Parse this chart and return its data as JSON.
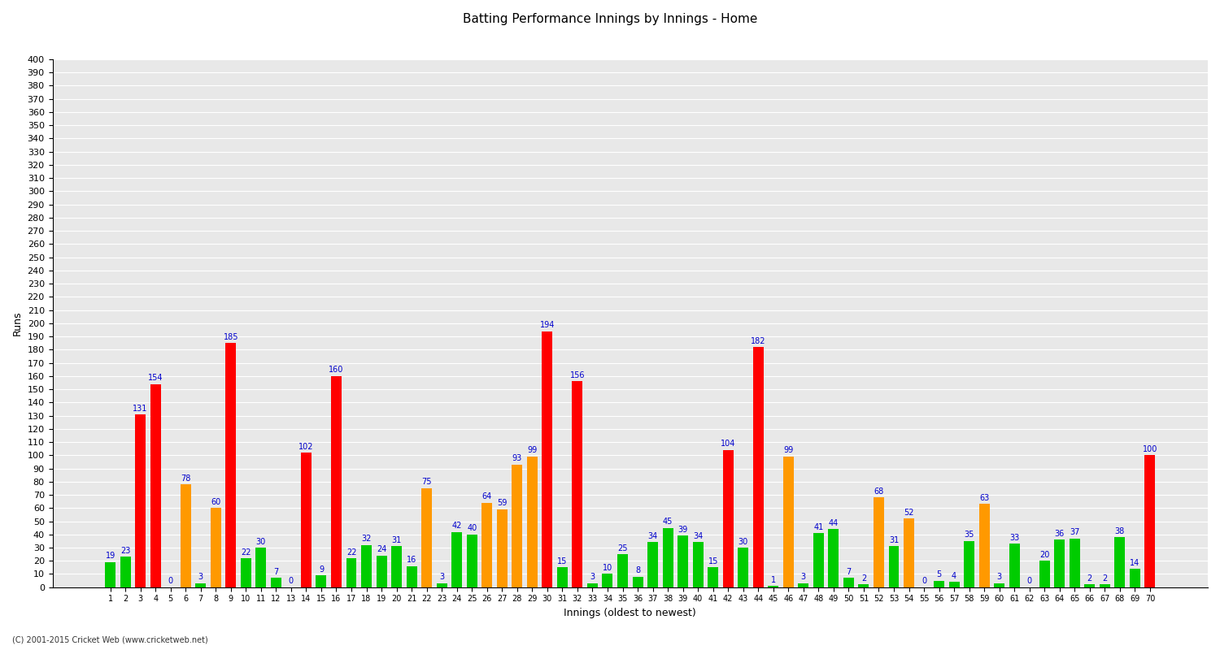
{
  "innings": [
    1,
    2,
    3,
    4,
    5,
    6,
    7,
    8,
    9,
    10,
    11,
    12,
    13,
    14,
    15,
    16,
    17,
    18,
    19,
    20,
    21,
    22,
    23,
    24,
    25,
    26,
    27,
    28,
    29,
    30,
    31,
    32,
    33,
    34,
    35,
    36,
    37,
    38,
    39,
    40,
    41,
    42,
    43,
    44,
    45,
    46,
    47,
    48,
    49,
    50,
    51,
    52,
    53,
    54,
    55,
    56,
    57,
    58,
    59,
    60,
    61,
    62,
    63,
    64,
    65,
    66,
    67,
    68,
    69,
    70
  ],
  "scores": [
    19,
    23,
    131,
    154,
    0,
    78,
    3,
    60,
    185,
    22,
    30,
    7,
    0,
    102,
    9,
    160,
    22,
    32,
    24,
    31,
    16,
    75,
    3,
    42,
    40,
    64,
    59,
    93,
    99,
    194,
    15,
    156,
    3,
    10,
    25,
    8,
    34,
    45,
    39,
    34,
    15,
    104,
    30,
    182,
    1,
    99,
    3,
    41,
    44,
    7,
    2,
    68,
    31,
    52,
    0,
    5,
    4,
    35,
    63,
    3,
    33,
    0,
    20,
    36,
    37,
    2,
    2,
    38,
    14,
    100
  ],
  "colors": [
    "#00cc00",
    "#00cc00",
    "#ff0000",
    "#ff0000",
    "#00cc00",
    "#ff9900",
    "#00cc00",
    "#ff9900",
    "#ff0000",
    "#00cc00",
    "#00cc00",
    "#00cc00",
    "#00cc00",
    "#ff0000",
    "#00cc00",
    "#ff0000",
    "#00cc00",
    "#00cc00",
    "#00cc00",
    "#00cc00",
    "#00cc00",
    "#ff9900",
    "#00cc00",
    "#00cc00",
    "#00cc00",
    "#ff9900",
    "#ff9900",
    "#ff9900",
    "#ff9900",
    "#ff0000",
    "#00cc00",
    "#ff0000",
    "#00cc00",
    "#00cc00",
    "#00cc00",
    "#00cc00",
    "#00cc00",
    "#00cc00",
    "#00cc00",
    "#00cc00",
    "#00cc00",
    "#ff0000",
    "#00cc00",
    "#ff0000",
    "#00cc00",
    "#ff9900",
    "#00cc00",
    "#00cc00",
    "#00cc00",
    "#00cc00",
    "#00cc00",
    "#ff9900",
    "#00cc00",
    "#ff9900",
    "#00cc00",
    "#00cc00",
    "#00cc00",
    "#00cc00",
    "#ff9900",
    "#00cc00",
    "#00cc00",
    "#00cc00",
    "#00cc00",
    "#00cc00",
    "#00cc00",
    "#00cc00",
    "#00cc00",
    "#00cc00",
    "#00cc00",
    "#ff0000"
  ],
  "title": "Batting Performance Innings by Innings - Home",
  "xlabel": "Innings (oldest to newest)",
  "ylabel": "Runs",
  "ylim": [
    0,
    400
  ],
  "yticks": [
    0,
    10,
    20,
    30,
    40,
    50,
    60,
    70,
    80,
    90,
    100,
    110,
    120,
    130,
    140,
    150,
    160,
    170,
    180,
    190,
    200,
    210,
    220,
    230,
    240,
    250,
    260,
    270,
    280,
    290,
    300,
    310,
    320,
    330,
    340,
    350,
    360,
    370,
    380,
    390,
    400
  ],
  "bg_color": "#e8e8e8",
  "bar_color_not_out": "#ff0000",
  "bar_color_50": "#ff9900",
  "bar_color_other": "#00cc00",
  "label_color": "#0000cc",
  "label_fontsize": 7,
  "footer": "(C) 2001-2015 Cricket Web (www.cricketweb.net)"
}
